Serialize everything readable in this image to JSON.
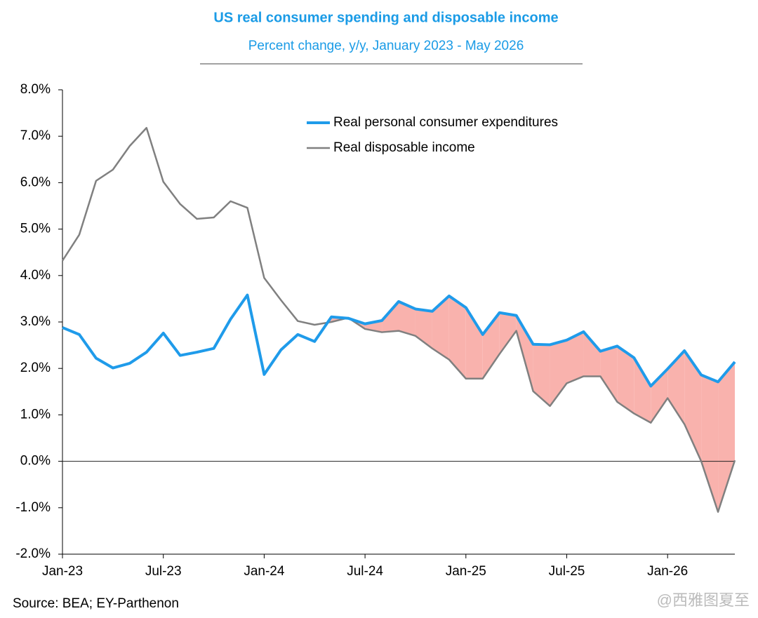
{
  "chart_data": {
    "type": "line",
    "title": "US real consumer spending and disposable income",
    "subtitle": "Percent change, y/y, January 2023 - May 2026",
    "source": "Source: BEA; EY-Parthenon",
    "watermark": "@西雅图夏至",
    "categories": [
      "Jan-23",
      null,
      null,
      null,
      null,
      null,
      "Jul-23",
      null,
      null,
      null,
      null,
      null,
      "Jan-24",
      null,
      null,
      null,
      null,
      null,
      "Jul-24",
      null,
      null,
      null,
      null,
      null,
      "Jan-25",
      null,
      null,
      null,
      null,
      null,
      "Jul-25",
      null,
      null,
      null,
      null,
      null,
      "Jan-26",
      null,
      null,
      null,
      null
    ],
    "series": [
      {
        "name": "Real personal consumer expenditures",
        "color": "#1f9bea",
        "values": [
          2.88,
          2.73,
          2.22,
          2.01,
          2.11,
          2.35,
          2.76,
          2.28,
          2.35,
          2.43,
          3.06,
          3.58,
          1.87,
          2.4,
          2.73,
          2.58,
          3.11,
          3.08,
          2.96,
          3.03,
          3.44,
          3.28,
          3.23,
          3.56,
          3.31,
          2.73,
          3.2,
          3.14,
          2.52,
          2.51,
          2.61,
          2.79,
          2.37,
          2.48,
          2.23,
          1.62,
          1.99,
          2.38,
          1.86,
          1.71,
          2.14
        ]
      },
      {
        "name": "Real disposable income",
        "color": "#808080",
        "values": [
          4.32,
          4.88,
          6.04,
          6.28,
          6.79,
          7.18,
          6.02,
          5.54,
          5.22,
          5.25,
          5.6,
          5.46,
          3.95,
          3.47,
          3.02,
          2.94,
          3.0,
          3.09,
          2.85,
          2.78,
          2.81,
          2.7,
          2.43,
          2.19,
          1.78,
          1.78,
          2.31,
          2.81,
          1.51,
          1.19,
          1.68,
          1.83,
          1.83,
          1.28,
          1.03,
          0.83,
          1.36,
          0.8,
          0.0,
          -1.09,
          0.02
        ]
      }
    ],
    "gap_color": "#f9b2ad",
    "ylim": [
      -2,
      8
    ],
    "yticks": [
      {
        "value": -2,
        "label": "-2.0%"
      },
      {
        "value": -1,
        "label": "-1.0%"
      },
      {
        "value": 0,
        "label": "0.0%"
      },
      {
        "value": 1,
        "label": "1.0%"
      },
      {
        "value": 2,
        "label": "2.0%"
      },
      {
        "value": 3,
        "label": "3.0%"
      },
      {
        "value": 4,
        "label": "4.0%"
      },
      {
        "value": 5,
        "label": "5.0%"
      },
      {
        "value": 6,
        "label": "6.0%"
      },
      {
        "value": 7,
        "label": "7.0%"
      },
      {
        "value": 8,
        "label": "8.0%"
      }
    ],
    "grid": false,
    "zero_line": true
  }
}
